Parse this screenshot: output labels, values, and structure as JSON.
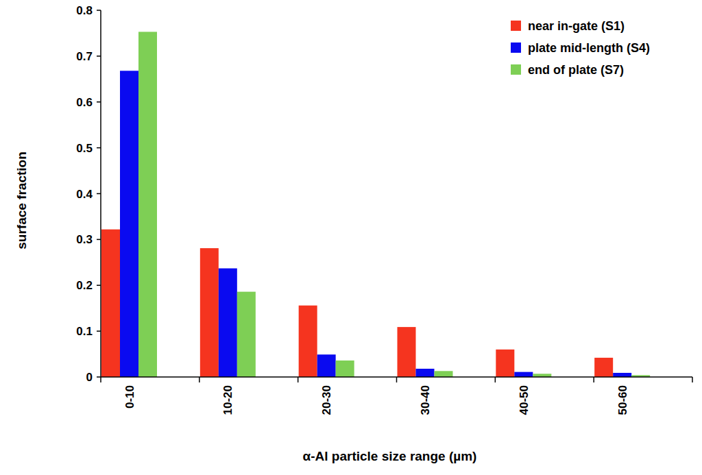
{
  "chart_data": {
    "type": "bar",
    "x_label": "α-Al particle size range (µm)",
    "y_label": "surface fraction",
    "categories": [
      "0-10",
      "10-20",
      "20-30",
      "30-40",
      "40-50",
      "50-60"
    ],
    "series": [
      {
        "name": "near in-gate (S1)",
        "color": "#f5341f",
        "values": [
          0.322,
          0.281,
          0.156,
          0.109,
          0.06,
          0.042
        ]
      },
      {
        "name": "plate mid-length (S4)",
        "color": "#0a0af0",
        "values": [
          0.668,
          0.237,
          0.049,
          0.018,
          0.011,
          0.009
        ]
      },
      {
        "name": "end of plate (S7)",
        "color": "#7ecf55",
        "values": [
          0.753,
          0.186,
          0.036,
          0.013,
          0.007,
          0.004
        ]
      }
    ],
    "ylim": [
      0,
      0.8
    ],
    "yticks": [
      0,
      0.1,
      0.2,
      0.3,
      0.4,
      0.5,
      0.6,
      0.7,
      0.8
    ],
    "grid": false,
    "legend": "top-right"
  }
}
